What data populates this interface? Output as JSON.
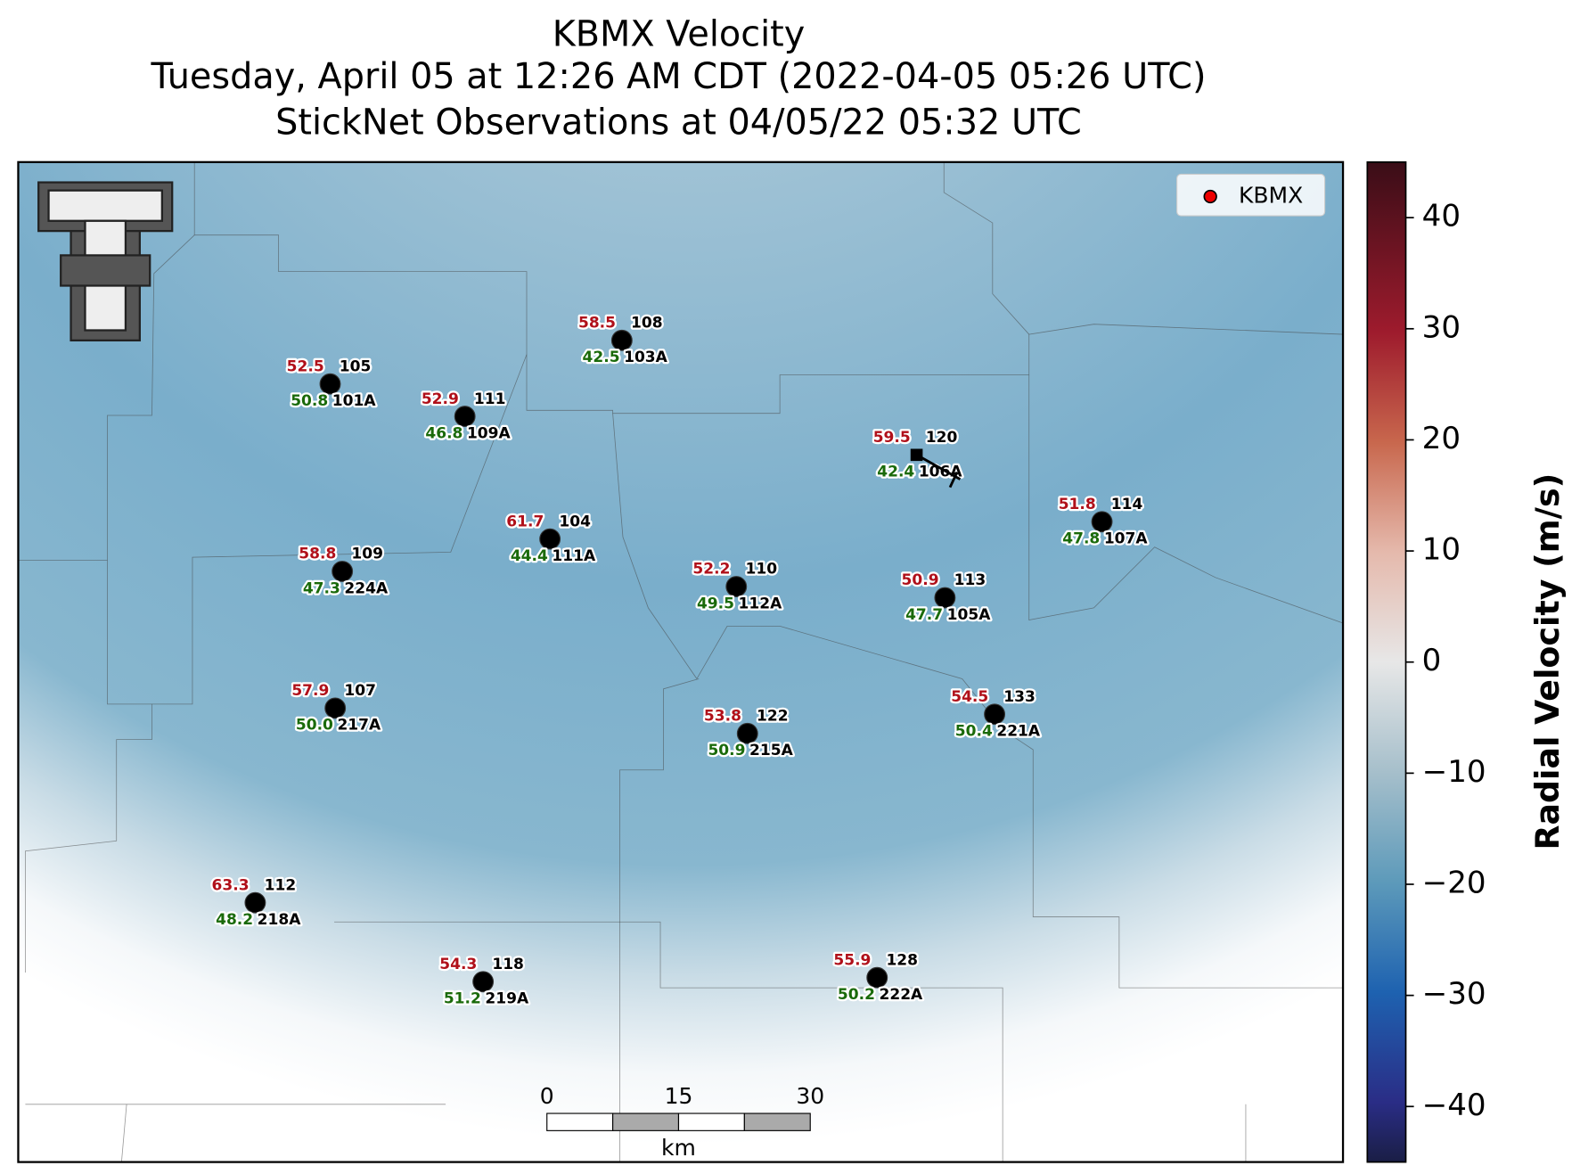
{
  "header": {
    "title": "KBMX Velocity",
    "subtitle": "Tuesday, April 05 at 12:26 AM CDT (2022-04-05 05:26 UTC)",
    "subtitle2": "StickNet Observations at 04/05/22 05:32 UTC"
  },
  "map": {
    "legend": "KBMX",
    "stations": [
      {
        "gust": "58.5",
        "speed": "42.5",
        "id": "108",
        "probe": "103A"
      },
      {
        "gust": "52.5",
        "speed": "50.8",
        "id": "105",
        "probe": "101A"
      },
      {
        "gust": "52.9",
        "speed": "46.8",
        "id": "111",
        "probe": "109A"
      },
      {
        "gust": "59.5",
        "speed": "42.4",
        "id": "120",
        "probe": "106A"
      },
      {
        "gust": "51.8",
        "speed": "47.8",
        "id": "114",
        "probe": "107A"
      },
      {
        "gust": "61.7",
        "speed": "44.4",
        "id": "104",
        "probe": "111A"
      },
      {
        "gust": "58.8",
        "speed": "47.3",
        "id": "109",
        "probe": "224A"
      },
      {
        "gust": "52.2",
        "speed": "49.5",
        "id": "110",
        "probe": "112A"
      },
      {
        "gust": "50.9",
        "speed": "47.7",
        "id": "113",
        "probe": "105A"
      },
      {
        "gust": "57.9",
        "speed": "50.0",
        "id": "107",
        "probe": "217A"
      },
      {
        "gust": "54.5",
        "speed": "50.4",
        "id": "133",
        "probe": "221A"
      },
      {
        "gust": "53.8",
        "speed": "50.9",
        "id": "122",
        "probe": "215A"
      },
      {
        "gust": "63.3",
        "speed": "48.2",
        "id": "112",
        "probe": "218A"
      },
      {
        "gust": "54.3",
        "speed": "51.2",
        "id": "118",
        "probe": "219A"
      },
      {
        "gust": "55.9",
        "speed": "50.2",
        "id": "128",
        "probe": "222A"
      }
    ]
  },
  "scale_bar": {
    "ticks": [
      "0",
      "15",
      "30"
    ],
    "unit": "km"
  },
  "colorbar": {
    "label": "Radial Velocity (m/s)",
    "range": [
      -45,
      45
    ],
    "ticks": [
      {
        "value": -40,
        "label": "−40"
      },
      {
        "value": -30,
        "label": "−30"
      },
      {
        "value": -20,
        "label": "−20"
      },
      {
        "value": -10,
        "label": "−10"
      },
      0,
      10,
      20,
      30,
      40
    ]
  }
}
